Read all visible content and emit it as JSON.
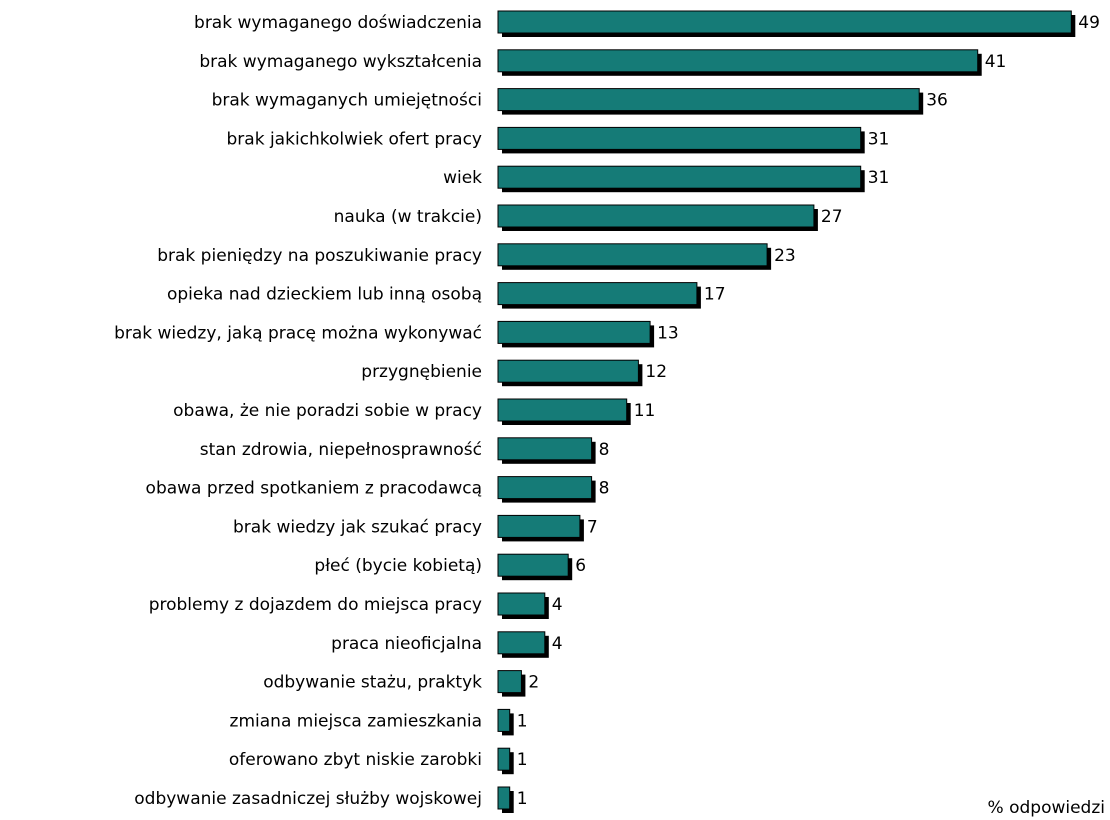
{
  "chart_data": {
    "type": "bar",
    "orientation": "horizontal",
    "x_label": "% odpowiedzi",
    "color": "#157b77",
    "categories": [
      "brak wymaganego doświadczenia",
      "brak wymaganego wykształcenia",
      "brak wymaganych umiejętności",
      "brak jakichkolwiek ofert pracy",
      "wiek",
      "nauka (w trakcie)",
      "brak pieniędzy na poszukiwanie pracy",
      "opieka nad dzieckiem lub inną osobą",
      "brak wiedzy, jaką pracę można wykonywać",
      "przygnębienie",
      "obawa, że nie poradzi sobie w pracy",
      "stan zdrowia, niepełnosprawność",
      "obawa przed spotkaniem z pracodawcą",
      "brak wiedzy jak szukać pracy",
      "płeć (bycie kobietą)",
      "problemy z dojazdem do miejsca pracy",
      "praca nieoficjalna",
      "odbywanie stażu, praktyk",
      "zmiana miejsca zamieszkania",
      "oferowano zbyt niskie zarobki",
      "odbywanie zasadniczej służby wojskowej"
    ],
    "values": [
      49,
      41,
      36,
      31,
      31,
      27,
      23,
      17,
      13,
      12,
      11,
      8,
      8,
      7,
      6,
      4,
      4,
      2,
      1,
      1,
      1
    ]
  }
}
